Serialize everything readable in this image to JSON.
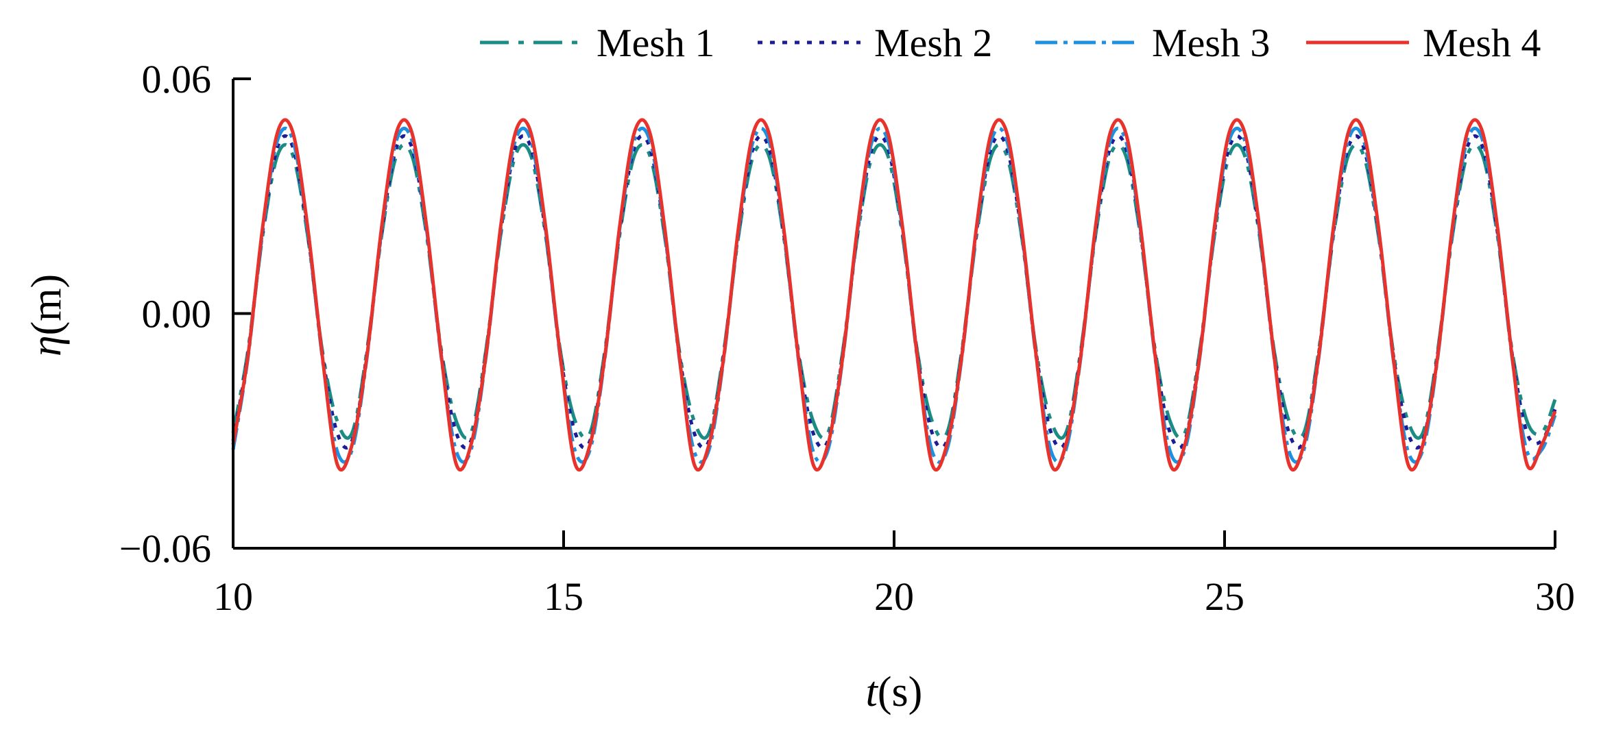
{
  "chart_data": {
    "type": "line",
    "title": "",
    "xlabel": {
      "italic": "t",
      "rest": "(s)"
    },
    "ylabel": {
      "italic": "η",
      "rest": "(m)"
    },
    "xlim": [
      10,
      30
    ],
    "ylim": [
      -0.06,
      0.06
    ],
    "xticks": [
      10,
      15,
      20,
      25,
      30
    ],
    "yticks": [
      -0.06,
      0.0,
      0.06
    ],
    "ytick_labels": [
      "−0.06",
      "0.00",
      "0.06"
    ],
    "xtick_labels": [
      "10",
      "15",
      "20",
      "25",
      "30"
    ],
    "grid": false,
    "legend_position": "top",
    "wave_period_s": 1.8,
    "x": [
      10.0,
      10.225,
      10.45,
      10.675,
      10.9,
      11.125,
      11.35,
      11.575,
      11.8,
      12.025,
      12.25,
      12.475,
      12.7,
      12.925,
      13.15,
      13.375,
      13.6,
      13.825,
      14.05,
      14.275,
      14.5,
      14.725,
      14.95,
      15.175,
      15.4,
      15.625,
      15.85,
      16.075,
      16.3,
      16.525,
      16.75,
      16.975,
      17.2,
      17.425,
      17.65,
      17.875,
      18.1,
      18.325,
      18.55,
      18.775,
      19.0,
      19.225,
      19.45,
      19.675,
      19.9,
      20.125,
      20.35,
      20.575,
      20.8,
      21.025,
      21.25,
      21.475,
      21.7,
      21.925,
      22.15,
      22.375,
      22.6,
      22.825,
      23.05,
      23.275,
      23.5,
      23.725,
      23.95,
      24.175,
      24.4,
      24.625,
      24.85,
      25.075,
      25.3,
      25.525,
      25.75,
      25.975,
      26.2,
      26.425,
      26.65,
      26.875,
      27.1,
      27.325,
      27.55,
      27.775,
      28.0,
      28.225,
      28.45,
      28.675,
      28.9,
      29.125,
      29.35,
      29.575,
      29.8,
      30.0
    ],
    "series": [
      {
        "name": "Mesh 1",
        "color": "#1a8c84",
        "dash": "42 14 8 14",
        "values": [
          -0.0305,
          -0.0094,
          0.0203,
          0.0406,
          0.0406,
          0.0203,
          -0.0095,
          -0.0275,
          -0.0305,
          -0.0094,
          0.0203,
          0.0406,
          0.0406,
          0.0203,
          -0.0095,
          -0.0275,
          -0.0305,
          -0.0094,
          0.0203,
          0.0406,
          0.0406,
          0.0203,
          -0.0095,
          -0.0275,
          -0.0305,
          -0.0094,
          0.0203,
          0.0406,
          0.0406,
          0.0203,
          -0.0095,
          -0.0275,
          -0.0305,
          -0.0094,
          0.0203,
          0.0406,
          0.0406,
          0.0203,
          -0.0095,
          -0.0275,
          -0.0305,
          -0.0094,
          0.0203,
          0.0406,
          0.0406,
          0.0203,
          -0.0095,
          -0.0275,
          -0.0305,
          -0.0094,
          0.0203,
          0.0406,
          0.0406,
          0.0203,
          -0.0095,
          -0.0275,
          -0.0305,
          -0.0094,
          0.0203,
          0.0406,
          0.0406,
          0.0203,
          -0.0095,
          -0.0275,
          -0.0305,
          -0.0094,
          0.0203,
          0.0406,
          0.0406,
          0.0203,
          -0.0095,
          -0.0275,
          -0.0305,
          -0.0094,
          0.0203,
          0.0406,
          0.0406,
          0.0203,
          -0.0095,
          -0.0275,
          -0.0305,
          -0.0094,
          0.0203,
          0.0406,
          0.0406,
          0.0203,
          -0.0095,
          -0.0275,
          -0.0305,
          -0.022
        ]
      },
      {
        "name": "Mesh 2",
        "color": "#1c1c96",
        "dash": "7 11",
        "values": [
          -0.0325,
          -0.0102,
          0.0212,
          0.0427,
          0.0427,
          0.0212,
          -0.0103,
          -0.0305,
          -0.0325,
          -0.0102,
          0.0212,
          0.0427,
          0.0427,
          0.0212,
          -0.0103,
          -0.0305,
          -0.0325,
          -0.0102,
          0.0212,
          0.0427,
          0.0427,
          0.0212,
          -0.0103,
          -0.0305,
          -0.0325,
          -0.0102,
          0.0212,
          0.0427,
          0.0427,
          0.0212,
          -0.0103,
          -0.0305,
          -0.0325,
          -0.0102,
          0.0212,
          0.0427,
          0.0427,
          0.0212,
          -0.0103,
          -0.0305,
          -0.0325,
          -0.0102,
          0.0212,
          0.0427,
          0.0427,
          0.0212,
          -0.0103,
          -0.0305,
          -0.0325,
          -0.0102,
          0.0212,
          0.0427,
          0.0427,
          0.0212,
          -0.0103,
          -0.0305,
          -0.0325,
          -0.0102,
          0.0212,
          0.0427,
          0.0427,
          0.0212,
          -0.0103,
          -0.0305,
          -0.0325,
          -0.0102,
          0.0212,
          0.0427,
          0.0427,
          0.0212,
          -0.0103,
          -0.0305,
          -0.0325,
          -0.0102,
          0.0212,
          0.0427,
          0.0427,
          0.0212,
          -0.0103,
          -0.0305,
          -0.0325,
          -0.0102,
          0.0212,
          0.0427,
          0.0427,
          0.0212,
          -0.0103,
          -0.0305,
          -0.0325,
          -0.0245
        ]
      },
      {
        "name": "Mesh 3",
        "color": "#1e90e0",
        "dash": "32 9 6 9",
        "values": [
          -0.0348,
          -0.0112,
          0.0218,
          0.0445,
          0.0445,
          0.0218,
          -0.0113,
          -0.0352,
          -0.0348,
          -0.0112,
          0.0218,
          0.0445,
          0.0445,
          0.0218,
          -0.0113,
          -0.0352,
          -0.0348,
          -0.0112,
          0.0218,
          0.0445,
          0.0445,
          0.0218,
          -0.0113,
          -0.0352,
          -0.0348,
          -0.0112,
          0.0218,
          0.0445,
          0.0445,
          0.0218,
          -0.0113,
          -0.0352,
          -0.0348,
          -0.0112,
          0.0218,
          0.0445,
          0.0445,
          0.0218,
          -0.0113,
          -0.0352,
          -0.0348,
          -0.0112,
          0.0218,
          0.0445,
          0.0445,
          0.0218,
          -0.0113,
          -0.0352,
          -0.0348,
          -0.0112,
          0.0218,
          0.0445,
          0.0445,
          0.0218,
          -0.0113,
          -0.0352,
          -0.0348,
          -0.0112,
          0.0218,
          0.0445,
          0.0445,
          0.0218,
          -0.0113,
          -0.0352,
          -0.0348,
          -0.0112,
          0.0218,
          0.0445,
          0.0445,
          0.0218,
          -0.0113,
          -0.0352,
          -0.0348,
          -0.0112,
          0.0218,
          0.0445,
          0.0445,
          0.0218,
          -0.0113,
          -0.0352,
          -0.0348,
          -0.0112,
          0.0218,
          0.0445,
          0.0445,
          0.0218,
          -0.0113,
          -0.0352,
          -0.0348,
          -0.026
        ]
      },
      {
        "name": "Mesh 4",
        "color": "#e8322c",
        "dash": "",
        "values": [
          -0.0335,
          -0.0108,
          0.0225,
          0.0465,
          0.0465,
          0.0225,
          -0.0109,
          -0.0385,
          -0.0335,
          -0.0108,
          0.0225,
          0.0465,
          0.0465,
          0.0225,
          -0.0109,
          -0.0385,
          -0.0335,
          -0.0108,
          0.0225,
          0.0465,
          0.0465,
          0.0225,
          -0.0109,
          -0.0385,
          -0.0335,
          -0.0108,
          0.0225,
          0.0465,
          0.0465,
          0.0225,
          -0.0109,
          -0.0385,
          -0.0335,
          -0.0108,
          0.0225,
          0.0465,
          0.0465,
          0.0225,
          -0.0109,
          -0.0385,
          -0.0335,
          -0.0108,
          0.0225,
          0.0465,
          0.0465,
          0.0225,
          -0.0109,
          -0.0385,
          -0.0335,
          -0.0108,
          0.0225,
          0.0465,
          0.0465,
          0.0225,
          -0.0109,
          -0.0385,
          -0.0335,
          -0.0108,
          0.0225,
          0.0465,
          0.0465,
          0.0225,
          -0.0109,
          -0.0385,
          -0.0335,
          -0.0108,
          0.0225,
          0.0465,
          0.0465,
          0.0225,
          -0.0109,
          -0.0385,
          -0.0335,
          -0.0108,
          0.0225,
          0.0465,
          0.0465,
          0.0225,
          -0.0109,
          -0.0385,
          -0.0335,
          -0.0108,
          0.0225,
          0.0465,
          0.0465,
          0.0225,
          -0.0109,
          -0.0385,
          -0.0335,
          -0.025
        ]
      }
    ]
  }
}
